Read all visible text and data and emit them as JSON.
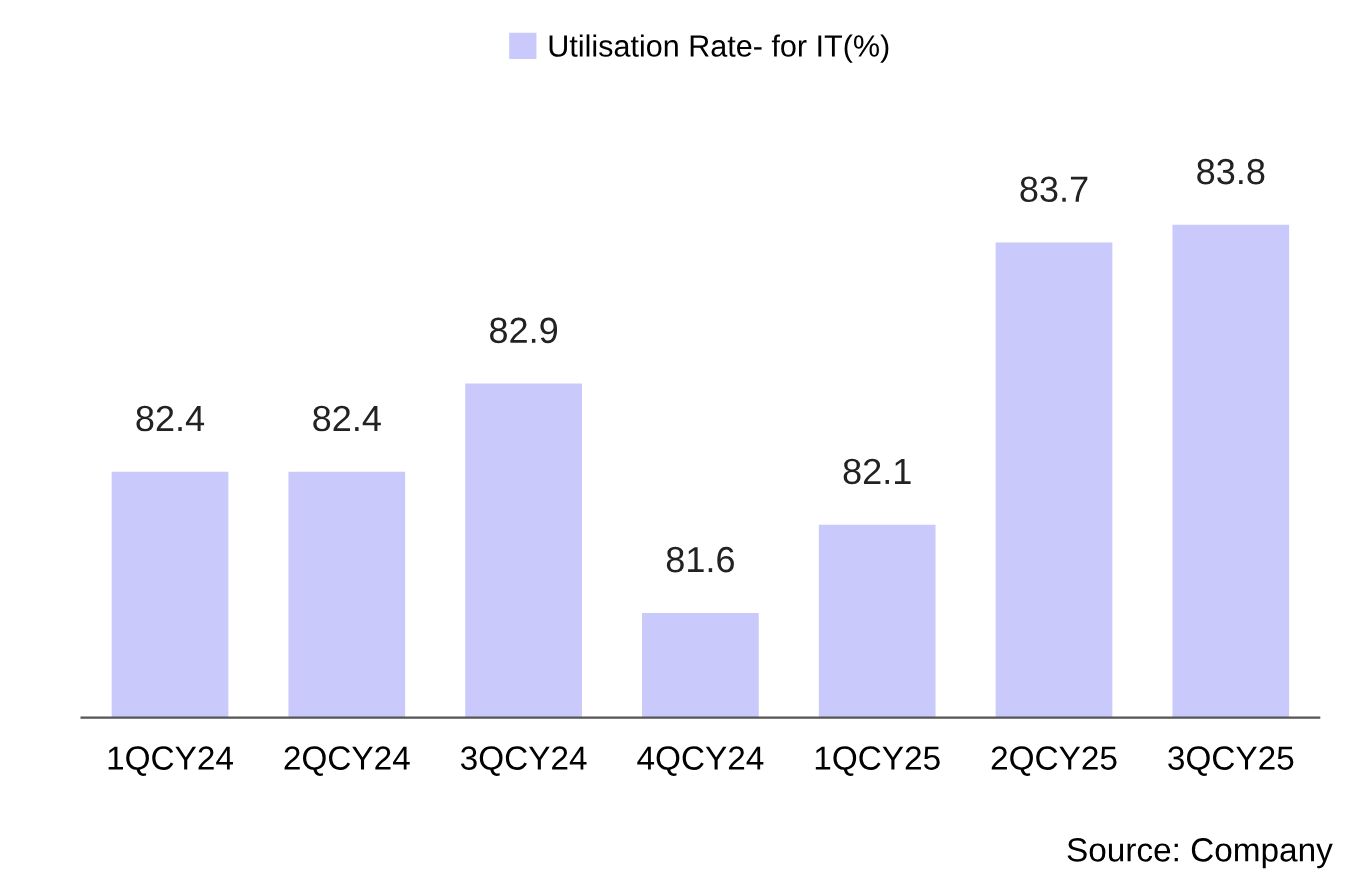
{
  "chart_data": {
    "type": "bar",
    "categories": [
      "1QCY24",
      "2QCY24",
      "3QCY24",
      "4QCY24",
      "1QCY25",
      "2QCY25",
      "3QCY25"
    ],
    "series": [
      {
        "name": "Utilisation Rate- for IT(%)",
        "color": "#c9c9fb",
        "values": [
          82.4,
          82.4,
          82.9,
          81.6,
          82.1,
          83.7,
          83.8
        ]
      }
    ],
    "tick_labels": "x",
    "data_labels": true,
    "legend": "top",
    "grid": false,
    "annotations": [
      "Source: Company"
    ]
  }
}
